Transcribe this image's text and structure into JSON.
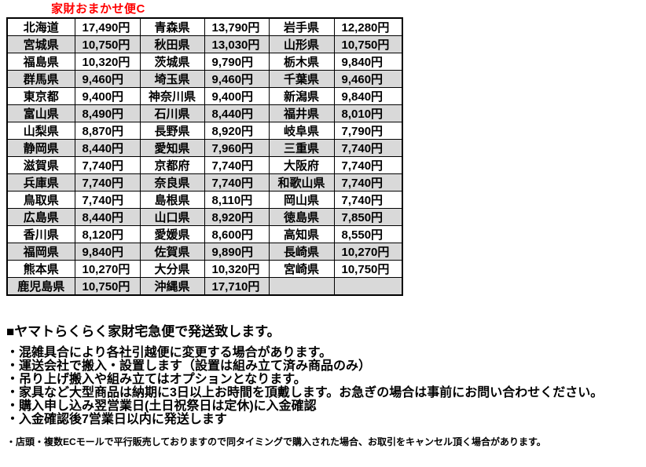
{
  "title": "家財おまかせ便C",
  "table": {
    "rows": [
      [
        "北海道",
        "17,490円",
        "青森県",
        "13,790円",
        "岩手県",
        "12,280円"
      ],
      [
        "宮城県",
        "10,750円",
        "秋田県",
        "13,030円",
        "山形県",
        "10,750円"
      ],
      [
        "福島県",
        "10,320円",
        "茨城県",
        "9,790円",
        "栃木県",
        "9,840円"
      ],
      [
        "群馬県",
        "9,460円",
        "埼玉県",
        "9,460円",
        "千葉県",
        "9,460円"
      ],
      [
        "東京都",
        "9,400円",
        "神奈川県",
        "9,400円",
        "新潟県",
        "9,840円"
      ],
      [
        "富山県",
        "8,490円",
        "石川県",
        "8,440円",
        "福井県",
        "8,010円"
      ],
      [
        "山梨県",
        "8,870円",
        "長野県",
        "8,920円",
        "岐阜県",
        "7,790円"
      ],
      [
        "静岡県",
        "8,440円",
        "愛知県",
        "7,960円",
        "三重県",
        "7,740円"
      ],
      [
        "滋賀県",
        "7,740円",
        "京都府",
        "7,740円",
        "大阪府",
        "7,740円"
      ],
      [
        "兵庫県",
        "7,740円",
        "奈良県",
        "7,740円",
        "和歌山県",
        "7,740円"
      ],
      [
        "鳥取県",
        "7,740円",
        "島根県",
        "8,110円",
        "岡山県",
        "7,740円"
      ],
      [
        "広島県",
        "8,440円",
        "山口県",
        "8,920円",
        "徳島県",
        "7,850円"
      ],
      [
        "香川県",
        "8,120円",
        "愛媛県",
        "8,600円",
        "高知県",
        "8,550円"
      ],
      [
        "福岡県",
        "9,840円",
        "佐賀県",
        "9,890円",
        "長崎県",
        "10,270円"
      ],
      [
        "熊本県",
        "10,270円",
        "大分県",
        "10,320円",
        "宮崎県",
        "10,750円"
      ],
      [
        "鹿児島県",
        "10,750円",
        "沖縄県",
        "17,710円",
        "",
        ""
      ]
    ]
  },
  "notes": {
    "heading": "■ヤマトらくらく家財宅急便で発送致します。",
    "bullets": [
      "・混雑具合により各社引越便に変更する場合があります。",
      "・運送会社で搬入・設置します（設置は組み立て済み商品のみ）",
      "・吊り上げ搬入や組み立てはオプションとなります。",
      "・家具など大型商品は納期に3日以上お時間を頂戴します。お急ぎの場合は事前にお問い合わせください。",
      "・購入申し込み翌営業日(土日祝祭日は定休)に入金確認",
      "・入金確認後7営業日以内に発送します"
    ],
    "small_note": "・店頭・複数ECモールで平行販売しておりますので同タイミングで購入された場合、お取引をキャンセル頂く場合があります。"
  },
  "colors": {
    "title_red": "#ff0000",
    "row_shade": "#d9d9d9",
    "border": "#000000",
    "text": "#000000",
    "background": "#ffffff"
  }
}
